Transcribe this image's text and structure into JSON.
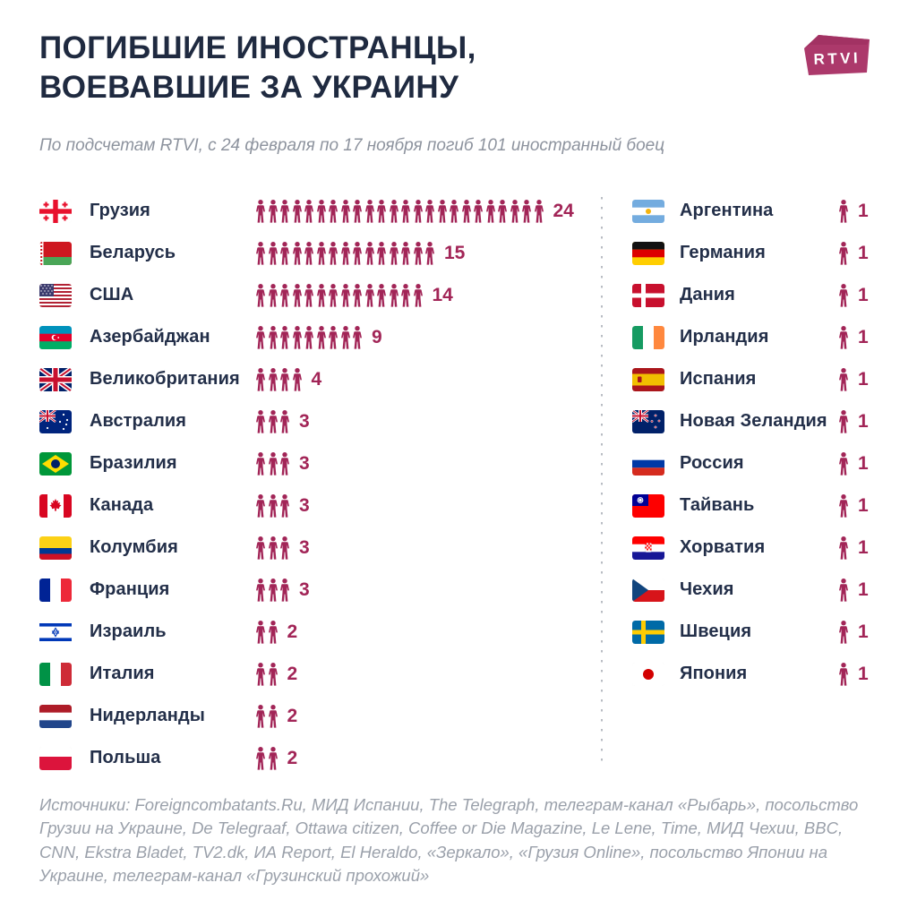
{
  "header": {
    "title_line1": "ПОГИБШИЕ ИНОСТРАНЦЫ,",
    "title_line2": "ВОЕВАВШИЕ ЗА УКРАИНУ",
    "subtitle": "По подсчетам RTVI, с 24 февраля по 17 ноября погиб 101 иностранный боец",
    "logo_text": "RTVI"
  },
  "footer": {
    "sources": "Источники: Foreigncombatants.Ru, МИД Испании, The Telegraph, телеграм-канал «Рыбарь», посольство Грузии на Украине, De Telegraaf, Ottawa citizen, Coffee or Die Magazine, Le Lene, Time, МИД Чехии, BBC, CNN, Ekstra Bladet, TV2.dk, ИА Report, El Heraldo, «Зеркало», «Грузия Online», посольство Японии на Украине, телеграм-канал «Грузинский прохожий»"
  },
  "colors": {
    "accent": "#a22557",
    "logo": "#ac396b",
    "title": "#1f2a40",
    "label": "#232f49",
    "muted_gray": "#8d939e",
    "divider_dots": "#b8bcc3"
  },
  "chart_data": {
    "type": "pictogram",
    "title": "ПОГИБШИЕ ИНОСТРАНЦЫ, ВОЕВАВШИЕ ЗА УКРАИНУ",
    "subtitle": "По подсчетам RTVI, с 24 февраля по 17 ноября погиб 101 иностранный боец",
    "total": 101,
    "icon": "person-icon",
    "icon_color": "#a22557",
    "legend_position": "none",
    "columns": [
      {
        "name": "left",
        "items": [
          {
            "label": "Грузия",
            "flag": "georgia",
            "value": 24
          },
          {
            "label": "Беларусь",
            "flag": "belarus",
            "value": 15
          },
          {
            "label": "США",
            "flag": "usa",
            "value": 14
          },
          {
            "label": "Азербайджан",
            "flag": "azerbaijan",
            "value": 9
          },
          {
            "label": "Великобритания",
            "flag": "uk",
            "value": 4
          },
          {
            "label": "Австралия",
            "flag": "australia",
            "value": 3
          },
          {
            "label": "Бразилия",
            "flag": "brazil",
            "value": 3
          },
          {
            "label": "Канада",
            "flag": "canada",
            "value": 3
          },
          {
            "label": "Колумбия",
            "flag": "colombia",
            "value": 3
          },
          {
            "label": "Франция",
            "flag": "france",
            "value": 3
          },
          {
            "label": "Израиль",
            "flag": "israel",
            "value": 2
          },
          {
            "label": "Италия",
            "flag": "italy",
            "value": 2
          },
          {
            "label": "Нидерланды",
            "flag": "netherlands",
            "value": 2
          },
          {
            "label": "Польша",
            "flag": "poland",
            "value": 2
          }
        ]
      },
      {
        "name": "right",
        "items": [
          {
            "label": "Аргентина",
            "flag": "argentina",
            "value": 1
          },
          {
            "label": "Германия",
            "flag": "germany",
            "value": 1
          },
          {
            "label": "Дания",
            "flag": "denmark",
            "value": 1
          },
          {
            "label": "Ирландия",
            "flag": "ireland",
            "value": 1
          },
          {
            "label": "Испания",
            "flag": "spain",
            "value": 1
          },
          {
            "label": "Новая Зеландия",
            "flag": "new-zealand",
            "value": 1
          },
          {
            "label": "Россия",
            "flag": "russia",
            "value": 1
          },
          {
            "label": "Тайвань",
            "flag": "taiwan",
            "value": 1
          },
          {
            "label": "Хорватия",
            "flag": "croatia",
            "value": 1
          },
          {
            "label": "Чехия",
            "flag": "czechia",
            "value": 1
          },
          {
            "label": "Швеция",
            "flag": "sweden",
            "value": 1
          },
          {
            "label": "Япония",
            "flag": "japan",
            "value": 1
          }
        ]
      }
    ]
  }
}
